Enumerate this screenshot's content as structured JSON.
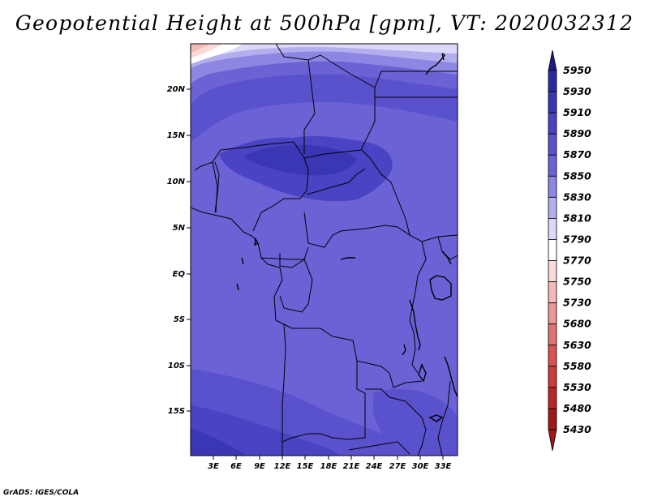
{
  "title": "Geopotential Height at 500hPa [gpm], VT: 2020032312",
  "credit": "GrADS: IGES/COLA",
  "map": {
    "lat_labels": [
      "20N",
      "15N",
      "10N",
      "5N",
      "EQ",
      "5S",
      "10S",
      "15S"
    ],
    "lon_labels": [
      "3E",
      "6E",
      "9E",
      "12E",
      "15E",
      "18E",
      "21E",
      "24E",
      "27E",
      "30E",
      "33E"
    ]
  },
  "colorbar": {
    "levels": [
      "5950",
      "5930",
      "5910",
      "5890",
      "5870",
      "5850",
      "5830",
      "5810",
      "5790",
      "5770",
      "5750",
      "5730",
      "5680",
      "5630",
      "5580",
      "5530",
      "5480",
      "5430"
    ],
    "colors": [
      "#1f1a85",
      "#2a2aa0",
      "#3a36b4",
      "#4a44c4",
      "#5a52cc",
      "#6b62d6",
      "#8d86e3",
      "#b3afef",
      "#dcdaf8",
      "#ffffff",
      "#fbd9d9",
      "#f5b9b9",
      "#ec9696",
      "#e27272",
      "#d85252",
      "#cc3a3a",
      "#b82626",
      "#a01818"
    ]
  }
}
